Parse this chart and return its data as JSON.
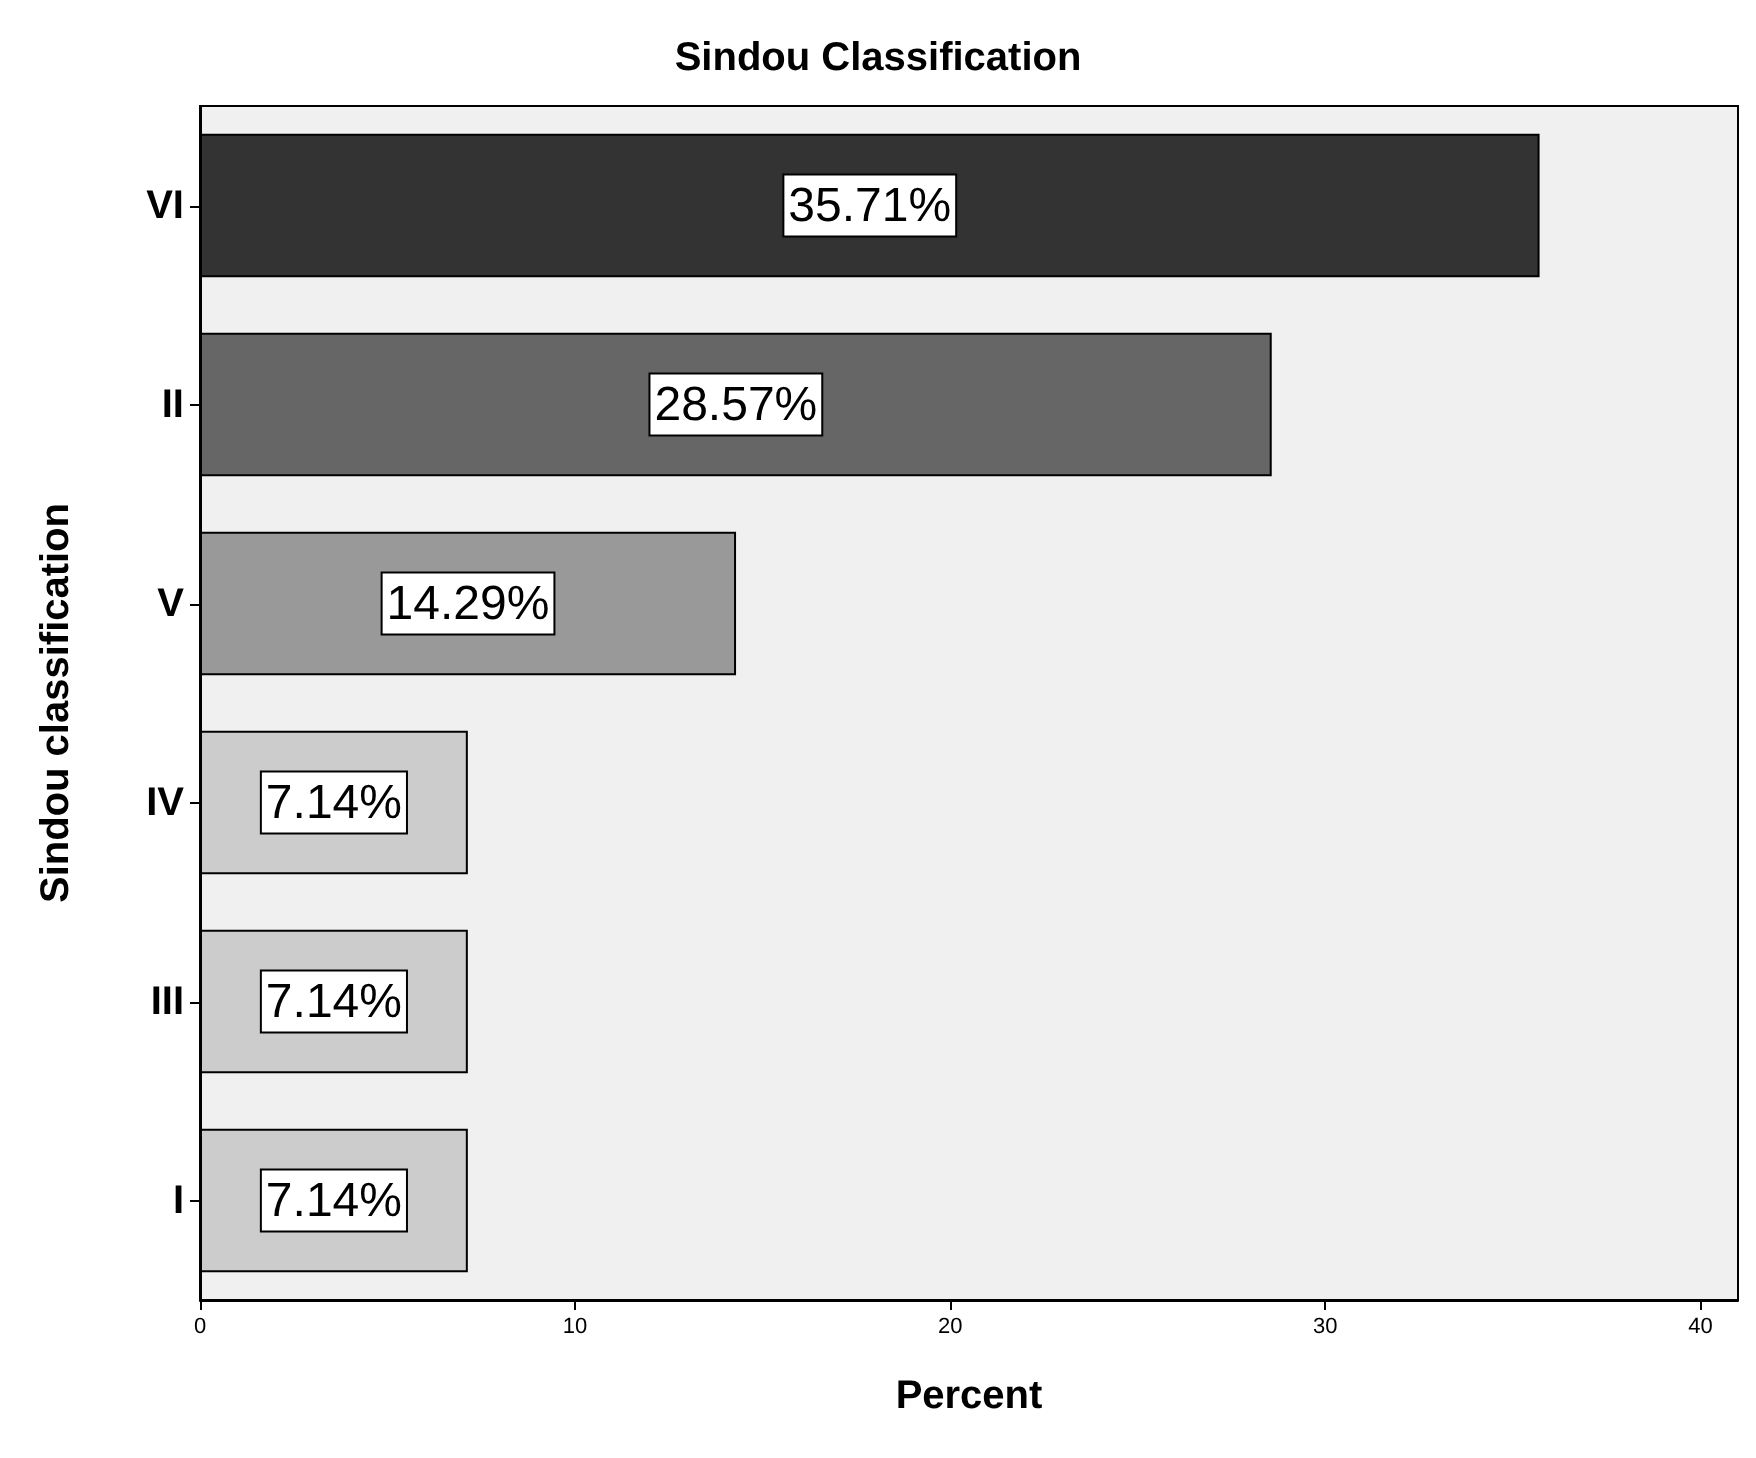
{
  "chart_data": {
    "type": "bar",
    "orientation": "horizontal",
    "title": "Sindou Classification",
    "xlabel": "Percent",
    "ylabel": "Sindou classification",
    "categories": [
      "VI",
      "II",
      "V",
      "IV",
      "III",
      "I"
    ],
    "values": [
      35.71,
      28.57,
      14.29,
      7.14,
      7.14,
      7.14
    ],
    "colors": [
      "#333333",
      "#666666",
      "#999999",
      "#cccccc",
      "#cccccc",
      "#cccccc"
    ],
    "value_labels": [
      "35.71%",
      "28.57%",
      "14.29%",
      "7.14%",
      "7.14%",
      "7.14%"
    ],
    "xlim": [
      0,
      41
    ],
    "xticks": [
      0,
      10,
      20,
      30,
      40
    ],
    "grid": false
  }
}
